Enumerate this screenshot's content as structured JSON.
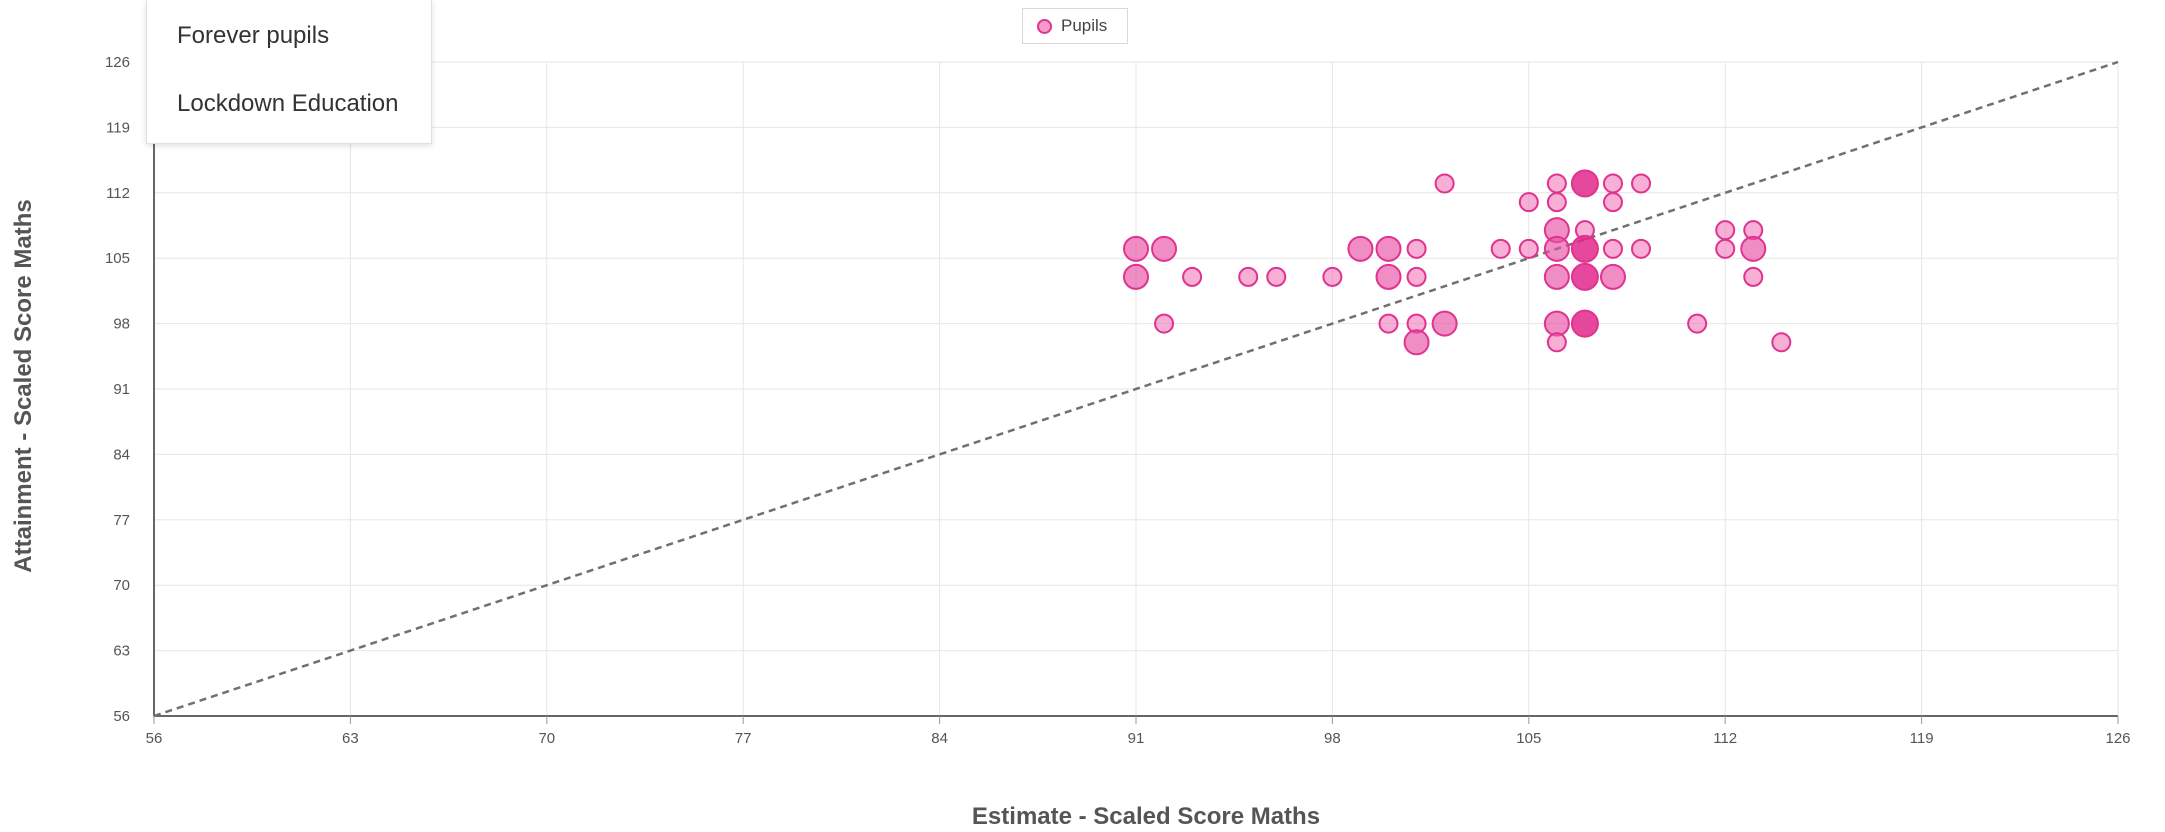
{
  "menu": {
    "items": [
      "Forever pupils",
      "Lockdown Education"
    ]
  },
  "legend": {
    "label": "Pupils",
    "color": "#e0338f"
  },
  "chart_data": {
    "type": "scatter",
    "xlabel": "Estimate - Scaled Score Maths",
    "ylabel": "Attainment - Scaled Score Maths",
    "xlim": [
      56,
      126
    ],
    "ylim": [
      56,
      126
    ],
    "xticks": [
      56,
      63,
      70,
      77,
      84,
      91,
      98,
      105,
      112,
      119,
      126
    ],
    "yticks": [
      56,
      63,
      70,
      77,
      84,
      91,
      98,
      105,
      112,
      119,
      126
    ],
    "grid": true,
    "legend_position": "top-center",
    "reference_line": {
      "from": [
        56,
        56
      ],
      "to": [
        126,
        126
      ],
      "style": "dashed"
    },
    "series": [
      {
        "name": "Pupils",
        "color": "#e0338f",
        "points": [
          {
            "x": 91,
            "y": 106,
            "count": 2
          },
          {
            "x": 92,
            "y": 106,
            "count": 2
          },
          {
            "x": 91,
            "y": 103,
            "count": 2
          },
          {
            "x": 93,
            "y": 103,
            "count": 1
          },
          {
            "x": 92,
            "y": 98,
            "count": 1
          },
          {
            "x": 95,
            "y": 103,
            "count": 1
          },
          {
            "x": 96,
            "y": 103,
            "count": 1
          },
          {
            "x": 98,
            "y": 103,
            "count": 1
          },
          {
            "x": 99,
            "y": 106,
            "count": 2
          },
          {
            "x": 100,
            "y": 106,
            "count": 2
          },
          {
            "x": 100,
            "y": 103,
            "count": 2
          },
          {
            "x": 101,
            "y": 106,
            "count": 1
          },
          {
            "x": 101,
            "y": 103,
            "count": 1
          },
          {
            "x": 100,
            "y": 98,
            "count": 1
          },
          {
            "x": 101,
            "y": 98,
            "count": 1
          },
          {
            "x": 102,
            "y": 98,
            "count": 2
          },
          {
            "x": 101,
            "y": 96,
            "count": 2
          },
          {
            "x": 102,
            "y": 113,
            "count": 1
          },
          {
            "x": 104,
            "y": 106,
            "count": 1
          },
          {
            "x": 105,
            "y": 106,
            "count": 1
          },
          {
            "x": 105,
            "y": 111,
            "count": 1
          },
          {
            "x": 106,
            "y": 113,
            "count": 1
          },
          {
            "x": 106,
            "y": 111,
            "count": 1
          },
          {
            "x": 106,
            "y": 108,
            "count": 2
          },
          {
            "x": 106,
            "y": 106,
            "count": 2
          },
          {
            "x": 106,
            "y": 103,
            "count": 2
          },
          {
            "x": 106,
            "y": 98,
            "count": 2
          },
          {
            "x": 106,
            "y": 96,
            "count": 1
          },
          {
            "x": 107,
            "y": 113,
            "count": 3
          },
          {
            "x": 107,
            "y": 108,
            "count": 1
          },
          {
            "x": 107,
            "y": 106,
            "count": 3
          },
          {
            "x": 107,
            "y": 103,
            "count": 3
          },
          {
            "x": 107,
            "y": 98,
            "count": 3
          },
          {
            "x": 108,
            "y": 113,
            "count": 1
          },
          {
            "x": 108,
            "y": 111,
            "count": 1
          },
          {
            "x": 108,
            "y": 106,
            "count": 1
          },
          {
            "x": 108,
            "y": 103,
            "count": 2
          },
          {
            "x": 109,
            "y": 113,
            "count": 1
          },
          {
            "x": 109,
            "y": 106,
            "count": 1
          },
          {
            "x": 111,
            "y": 98,
            "count": 1
          },
          {
            "x": 112,
            "y": 108,
            "count": 1
          },
          {
            "x": 112,
            "y": 106,
            "count": 1
          },
          {
            "x": 113,
            "y": 108,
            "count": 1
          },
          {
            "x": 113,
            "y": 106,
            "count": 2
          },
          {
            "x": 113,
            "y": 103,
            "count": 1
          },
          {
            "x": 114,
            "y": 96,
            "count": 1
          }
        ]
      }
    ]
  }
}
